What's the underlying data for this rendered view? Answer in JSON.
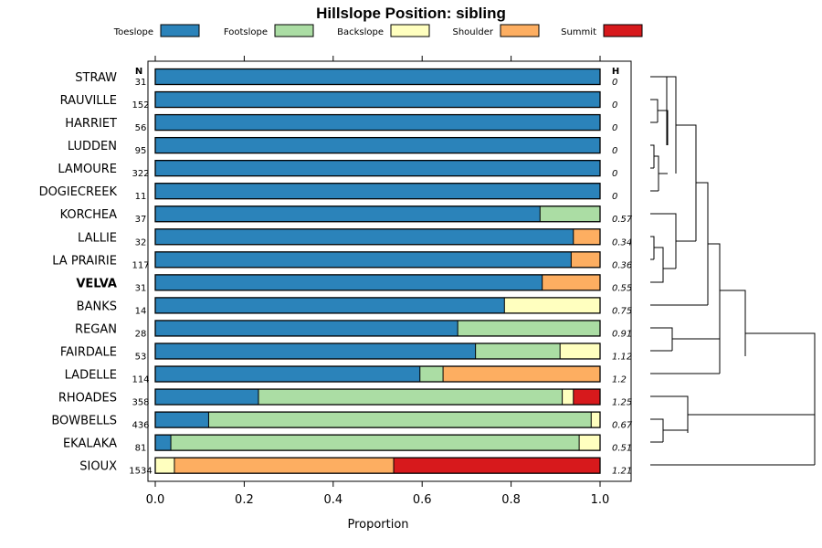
{
  "chart_data": {
    "type": "bar",
    "orientation": "horizontal",
    "stacked": true,
    "title": "Hillslope Position: sibling",
    "xlabel": "Proportion",
    "xlim": [
      0,
      1
    ],
    "xticks": [
      "0.0",
      "0.2",
      "0.4",
      "0.6",
      "0.8",
      "1.0"
    ],
    "n_header": "N",
    "h_header": "H",
    "legend": [
      {
        "name": "Toeslope",
        "color": "#2B83BA"
      },
      {
        "name": "Footslope",
        "color": "#ABDDA4"
      },
      {
        "name": "Backslope",
        "color": "#FFFFBF"
      },
      {
        "name": "Shoulder",
        "color": "#FDAE61"
      },
      {
        "name": "Summit",
        "color": "#D7191C"
      }
    ],
    "categories": [
      "STRAW",
      "RAUVILLE",
      "HARRIET",
      "LUDDEN",
      "LAMOURE",
      "DOGIECREEK",
      "KORCHEA",
      "LALLIE",
      "LA PRAIRIE",
      "VELVA",
      "BANKS",
      "REGAN",
      "FAIRDALE",
      "LADELLE",
      "RHOADES",
      "BOWBELLS",
      "EKALAKA",
      "SIOUX"
    ],
    "highlight": "VELVA",
    "n": [
      "31",
      "152",
      "56",
      "95",
      "322",
      "11",
      "37",
      "32",
      "117",
      "31",
      "14",
      "28",
      "53",
      "114",
      "358",
      "436",
      "81",
      "1534"
    ],
    "h": [
      "0",
      "0",
      "0",
      "0",
      "0",
      "0",
      "0.57",
      "0.34",
      "0.36",
      "0.55",
      "0.75",
      "0.91",
      "1.12",
      "1.2",
      "1.25",
      "0.67",
      "0.51",
      "1.21"
    ],
    "series": [
      {
        "name": "Toeslope",
        "values": [
          1,
          1,
          1,
          1,
          1,
          1,
          0.865,
          0.94,
          0.935,
          0.87,
          0.785,
          0.68,
          0.72,
          0.595,
          0.232,
          0.12,
          0.035,
          0
        ]
      },
      {
        "name": "Footslope",
        "values": [
          0,
          0,
          0,
          0,
          0,
          0,
          0.135,
          0,
          0,
          0,
          0,
          0.32,
          0.19,
          0.052,
          0.683,
          0.86,
          0.918,
          0
        ]
      },
      {
        "name": "Backslope",
        "values": [
          0,
          0,
          0,
          0,
          0,
          0,
          0,
          0,
          0,
          0,
          0.215,
          0,
          0.09,
          0,
          0.025,
          0.02,
          0.047,
          0.043
        ]
      },
      {
        "name": "Shoulder",
        "values": [
          0,
          0,
          0,
          0,
          0,
          0,
          0,
          0.06,
          0.065,
          0.13,
          0,
          0,
          0,
          0.353,
          0,
          0,
          0,
          0.493
        ]
      },
      {
        "name": "Summit",
        "values": [
          0,
          0,
          0,
          0,
          0,
          0,
          0,
          0,
          0,
          0,
          0,
          0,
          0,
          0,
          0.06,
          0,
          0,
          0.464
        ]
      }
    ]
  }
}
